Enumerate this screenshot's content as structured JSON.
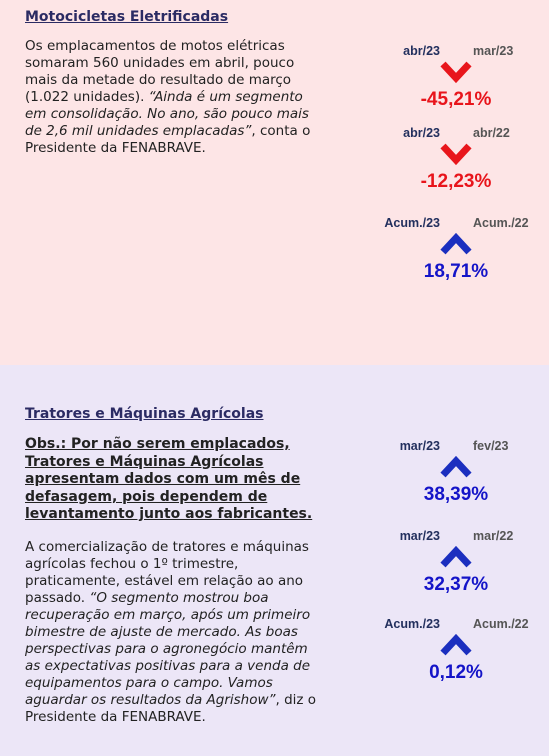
{
  "sections": [
    {
      "title": "Motocicletas Eletrificadas",
      "paragraphs": [
        {
          "segments": [
            {
              "text": "Os emplacamentos de motos elétricas somaram 560 unidades em abril, pouco mais da metade do resultado de março (1.022 unidades). ",
              "italic": false
            },
            {
              "text": "“Ainda é um segmento em consolidação. No ano, são pouco mais de 2,6 mil unidades emplacadas”",
              "italic": true
            },
            {
              "text": ", conta o Presidente da FENABRAVE.",
              "italic": false
            }
          ]
        }
      ],
      "indicators": [
        {
          "from": "abr/23",
          "to": "mar/23",
          "value": "-45,21%",
          "direction": "down"
        },
        {
          "from": "abr/23",
          "to": "abr/22",
          "value": "-12,23%",
          "direction": "down"
        },
        {
          "from": "Acum./23",
          "to": "Acum./22",
          "value": "18,71%",
          "direction": "up"
        }
      ]
    },
    {
      "title": "Tratores e Máquinas Agrícolas",
      "note": "Obs.: Por não serem emplacados, Tratores e Máquinas Agrícolas apresentam dados com um mês de defasagem, pois dependem de levantamento junto aos fabricantes.",
      "paragraphs": [
        {
          "segments": [
            {
              "text": "A comercialização de tratores e máquinas agrícolas fechou o 1º trimestre, praticamente, estável em relação ao ano passado. ",
              "italic": false
            },
            {
              "text": "“O segmento mostrou boa recuperação em março, após um primeiro bimestre de ajuste de mercado. As boas perspectivas para o agronegócio mantêm as expectativas positivas para a venda de equipamentos para o campo. Vamos aguardar os resultados da Agrishow”",
              "italic": true
            },
            {
              "text": ", diz o Presidente da FENABRAVE.",
              "italic": false
            }
          ]
        }
      ],
      "indicators": [
        {
          "from": "mar/23",
          "to": "fev/23",
          "value": "38,39%",
          "direction": "up"
        },
        {
          "from": "mar/23",
          "to": "mar/22",
          "value": "32,37%",
          "direction": "up"
        },
        {
          "from": "Acum./23",
          "to": "Acum./22",
          "value": "0,12%",
          "direction": "up"
        }
      ]
    }
  ]
}
